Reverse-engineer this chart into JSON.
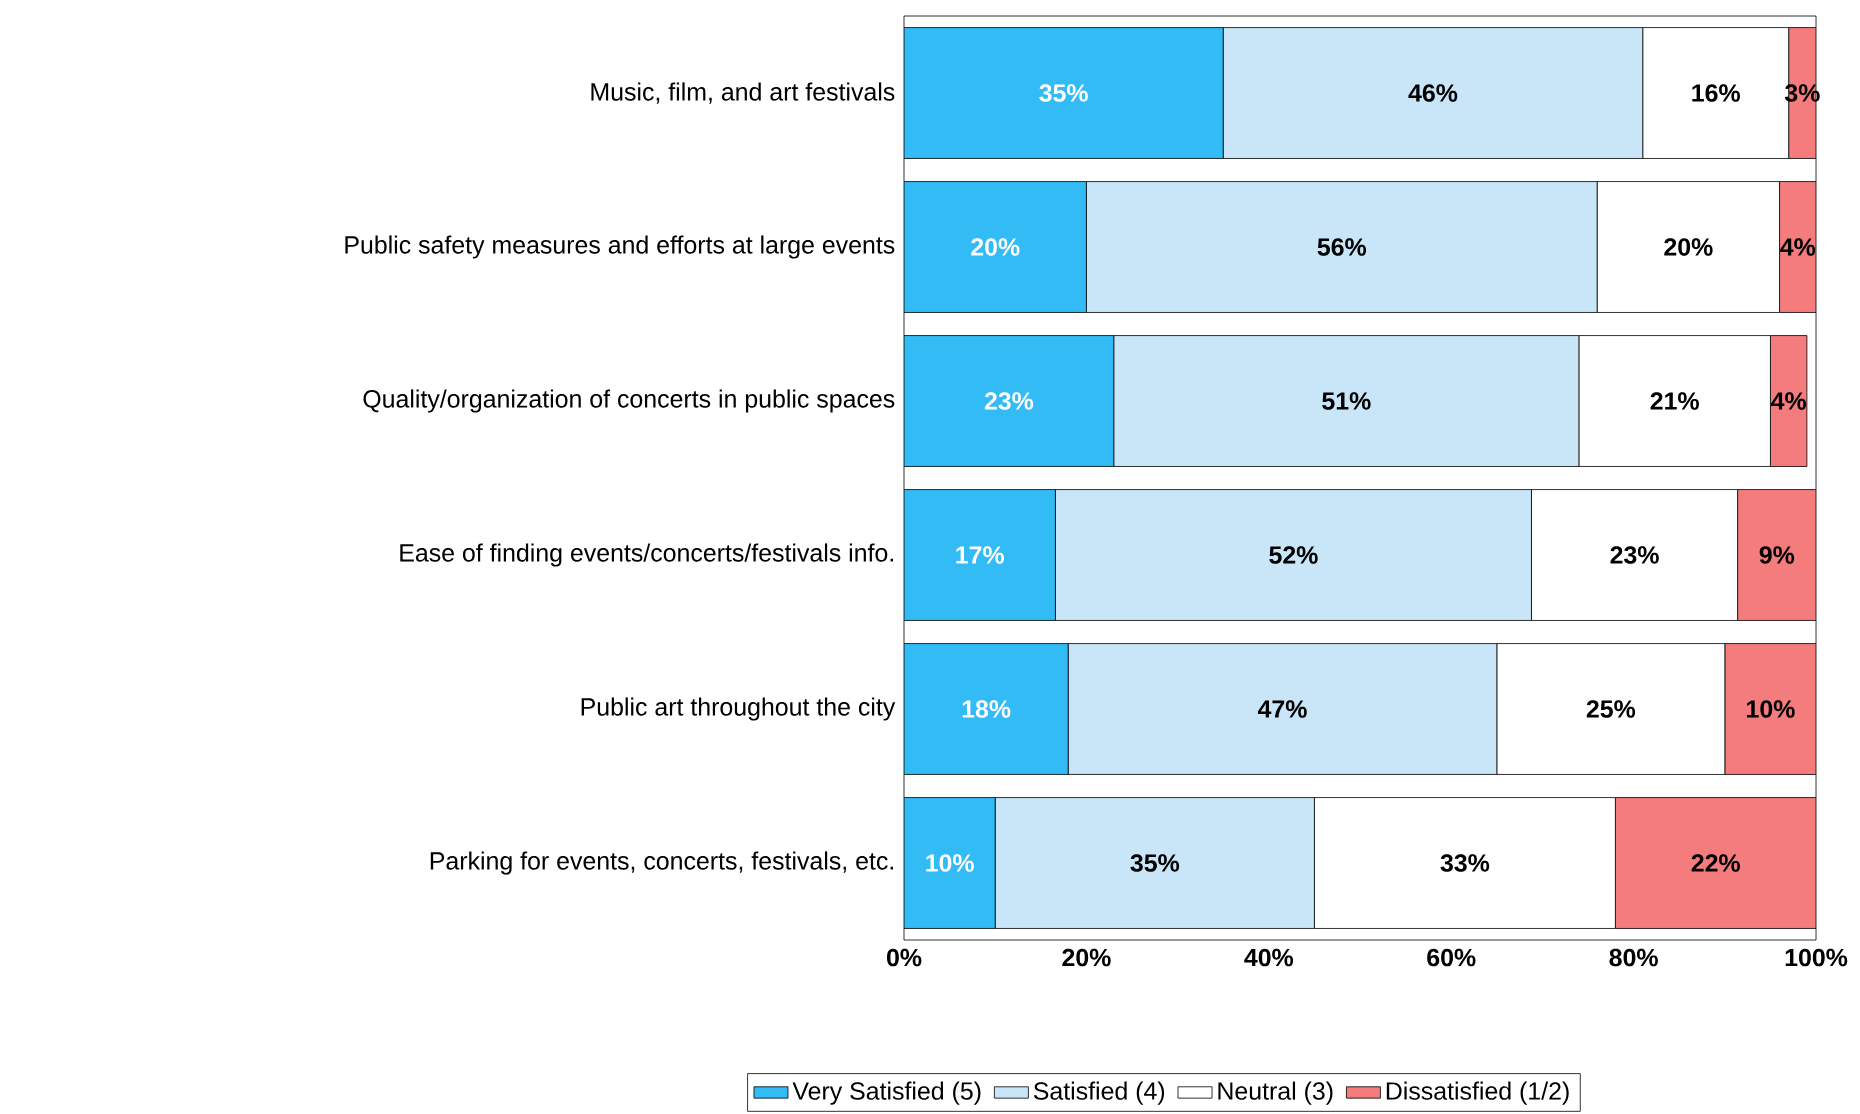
{
  "chart_data": {
    "type": "bar",
    "orientation": "horizontal",
    "stacked": true,
    "categories": [
      "Music, film, and art festivals",
      "Public safety measures and efforts at large events",
      "Quality/organization of concerts in public spaces",
      "Ease of finding events/concerts/festivals info.",
      "Public art throughout the city",
      "Parking for events, concerts, festivals, etc."
    ],
    "series": [
      {
        "name": "Very Satisfied (5)",
        "color": "#33bbf5",
        "values": [
          35,
          20,
          23,
          16.6,
          18,
          10
        ],
        "value_labels": [
          "35%",
          "20%",
          "23%",
          "17%",
          "18%",
          "10%"
        ]
      },
      {
        "name": "Satisfied (4)",
        "color": "#c8e6f8",
        "values": [
          46,
          56,
          51,
          52.2,
          47,
          35
        ],
        "value_labels": [
          "46%",
          "56%",
          "51%",
          "52%",
          "47%",
          "35%"
        ]
      },
      {
        "name": "Neutral (3)",
        "color": "#ffffff",
        "values": [
          16,
          20,
          21,
          22.6,
          25,
          33
        ],
        "value_labels": [
          "16%",
          "20%",
          "21%",
          "23%",
          "25%",
          "33%"
        ]
      },
      {
        "name": "Dissatisfied (1/2)",
        "color": "#f47c7c",
        "values": [
          3,
          4,
          4,
          8.6,
          10,
          22
        ],
        "value_labels": [
          "3%",
          "4%",
          "4%",
          "9%",
          "10%",
          "22%"
        ]
      }
    ],
    "xlim": [
      0,
      100
    ],
    "xticks": [
      {
        "value": 0,
        "label": "0%"
      },
      {
        "value": 20,
        "label": "20%"
      },
      {
        "value": 40,
        "label": "40%"
      },
      {
        "value": 60,
        "label": "60%"
      },
      {
        "value": 80,
        "label": "80%"
      },
      {
        "value": 100,
        "label": "100%"
      }
    ],
    "legend": "bottom"
  }
}
